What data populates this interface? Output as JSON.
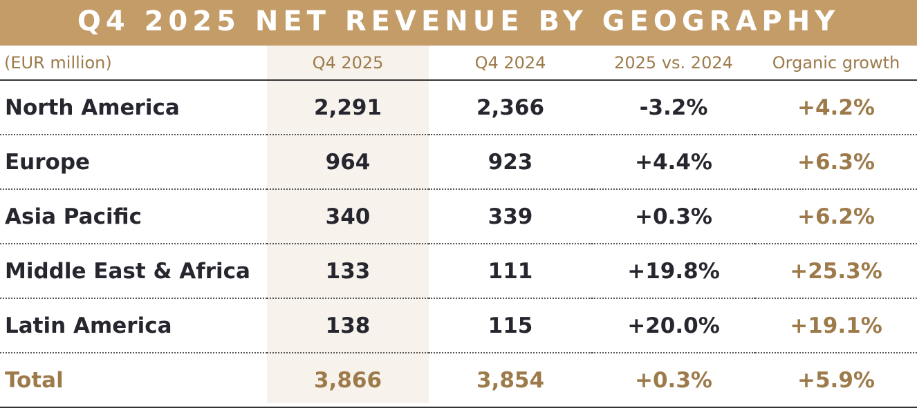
{
  "title": "Q4 2025 NET REVENUE BY GEOGRAPHY",
  "colors": {
    "banner": "#C39C68",
    "accent": "#9C7A4A",
    "text": "#26262F",
    "highlight_column": "#F7F2EC"
  },
  "chart_data": {
    "type": "table",
    "title": "Q4 2025 NET REVENUE BY GEOGRAPHY",
    "unit_label": "(EUR million)",
    "columns": [
      "(EUR million)",
      "Q4 2025",
      "Q4 2024",
      "2025 vs. 2024",
      "Organic growth"
    ],
    "rows": [
      {
        "region": "North America",
        "q4_2025": "2,291",
        "q4_2024": "2,366",
        "change": "-3.2%",
        "organic": "+4.2%"
      },
      {
        "region": "Europe",
        "q4_2025": "964",
        "q4_2024": "923",
        "change": "+4.4%",
        "organic": "+6.3%"
      },
      {
        "region": "Asia Pacific",
        "q4_2025": "340",
        "q4_2024": "339",
        "change": "+0.3%",
        "organic": "+6.2%"
      },
      {
        "region": "Middle East & Africa",
        "q4_2025": "133",
        "q4_2024": "111",
        "change": "+19.8%",
        "organic": "+25.3%"
      },
      {
        "region": "Latin America",
        "q4_2025": "138",
        "q4_2024": "115",
        "change": "+20.0%",
        "organic": "+19.1%"
      },
      {
        "region": "Total",
        "q4_2025": "3,866",
        "q4_2024": "3,854",
        "change": "+0.3%",
        "organic": "+5.9%"
      }
    ]
  }
}
